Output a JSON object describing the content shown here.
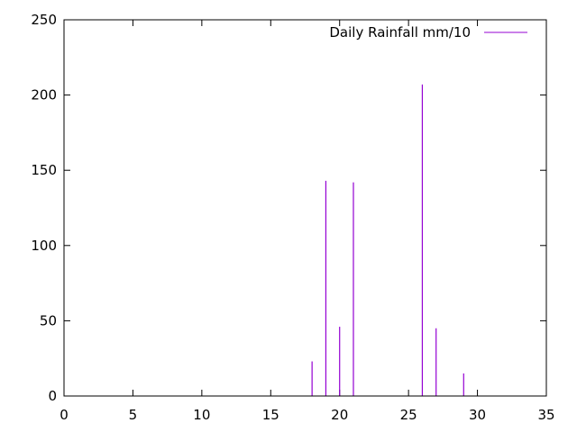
{
  "chart_data": {
    "type": "bar",
    "style": "impulses",
    "title": "",
    "xlabel": "",
    "ylabel": "",
    "xlim": [
      0,
      35
    ],
    "ylim": [
      0,
      250
    ],
    "xticks": [
      0,
      5,
      10,
      15,
      20,
      25,
      30,
      35
    ],
    "yticks": [
      0,
      50,
      100,
      150,
      200,
      250
    ],
    "grid": false,
    "legend_position": "top-right",
    "series": [
      {
        "name": "Daily Rainfall mm/10",
        "color": "#9400d3",
        "x": [
          18,
          19,
          20,
          21,
          26,
          27,
          29
        ],
        "y": [
          23,
          143,
          46,
          142,
          207,
          45,
          15
        ]
      }
    ]
  }
}
